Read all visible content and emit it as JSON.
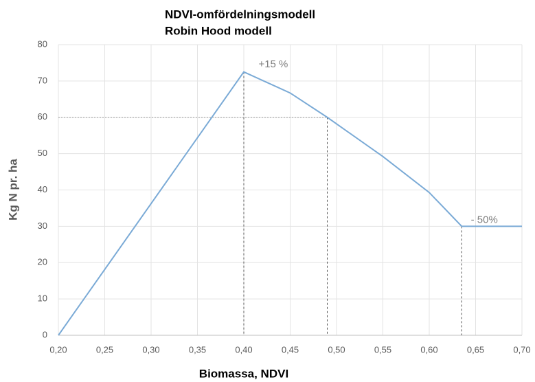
{
  "chart_data": {
    "type": "line",
    "title": [
      "NDVI-omfördelningsmodell",
      "Robin Hood modell"
    ],
    "x_label": "Biomassa, NDVI",
    "y_label": "Kg N pr. ha",
    "series": [
      {
        "name": "Kg N pr. ha",
        "color": "#7aaad6",
        "x": [
          0.2,
          0.4,
          0.45,
          0.49,
          0.55,
          0.6,
          0.635,
          0.7
        ],
        "values": [
          0,
          72.5,
          66.7,
          60,
          49.2,
          39.3,
          30,
          30
        ]
      }
    ],
    "annotations": [
      {
        "text": "+15 %",
        "x": 0.407,
        "y": 74.5
      },
      {
        "text": "- 50%",
        "x": 0.636,
        "y": 31.7
      }
    ],
    "xlim": [
      0.2,
      0.7
    ],
    "xticks": [
      {
        "value": 0.2,
        "label": "0,20"
      },
      {
        "value": 0.25,
        "label": "0,25"
      },
      {
        "value": 0.3,
        "label": "0,30"
      },
      {
        "value": 0.35,
        "label": "0,35"
      },
      {
        "value": 0.4,
        "label": "0,40"
      },
      {
        "value": 0.45,
        "label": "0,45"
      },
      {
        "value": 0.5,
        "label": "0,50"
      },
      {
        "value": 0.55,
        "label": "0,55"
      },
      {
        "value": 0.6,
        "label": "0,60"
      },
      {
        "value": 0.65,
        "label": "0,65"
      },
      {
        "value": 0.7,
        "label": "0,70"
      }
    ],
    "ylim": [
      0,
      80
    ],
    "yticks": [
      0,
      10,
      20,
      30,
      40,
      50,
      60,
      70,
      80
    ],
    "grid": true
  }
}
